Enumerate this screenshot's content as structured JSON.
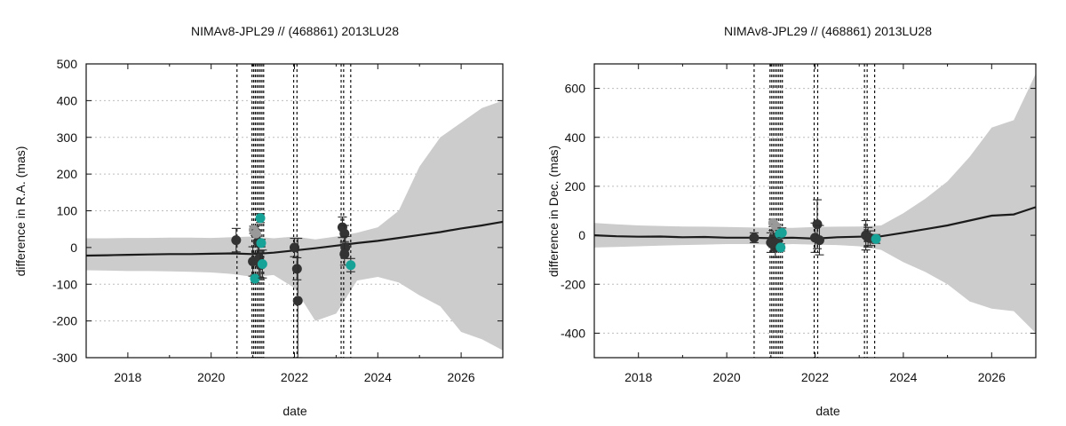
{
  "chart_data": [
    {
      "type": "scatter",
      "title": "NIMAv8-JPL29 // (468861) 2013LU28",
      "xlabel": "date",
      "ylabel": "difference in R.A. (mas)",
      "xlim": [
        2017.0,
        2027.0
      ],
      "ylim": [
        -300,
        500
      ],
      "xticks": [
        2018,
        2020,
        2022,
        2024,
        2026
      ],
      "yticks": [
        -300,
        -200,
        -100,
        0,
        100,
        200,
        300,
        400,
        500
      ],
      "grid": "horizontal dashed",
      "vlines": [
        2020.62,
        2020.98,
        2021.02,
        2021.06,
        2021.1,
        2021.14,
        2021.18,
        2021.22,
        2021.26,
        2021.98,
        2022.06,
        2023.12,
        2023.18,
        2023.35
      ],
      "model_curve": {
        "x": [
          2017.0,
          2017.5,
          2018.0,
          2018.5,
          2019.0,
          2019.5,
          2020.0,
          2020.5,
          2021.0,
          2021.5,
          2022.0,
          2022.5,
          2023.0,
          2023.5,
          2024.0,
          2024.5,
          2025.0,
          2025.5,
          2026.0,
          2026.5,
          2027.0
        ],
        "y": [
          -22,
          -21,
          -20,
          -19,
          -18,
          -18,
          -17,
          -16,
          -18,
          -14,
          -8,
          -2,
          5,
          12,
          18,
          26,
          34,
          42,
          52,
          60,
          70
        ],
        "color": "#1b1b1b"
      },
      "uncertainty_band": {
        "x": [
          2017.0,
          2017.5,
          2018.0,
          2018.5,
          2019.0,
          2019.5,
          2020.0,
          2020.5,
          2021.0,
          2021.5,
          2022.0,
          2022.5,
          2023.0,
          2023.5,
          2024.0,
          2024.5,
          2025.0,
          2025.5,
          2026.0,
          2026.5,
          2027.0
        ],
        "upper": [
          25,
          25,
          26,
          26,
          27,
          27,
          26,
          28,
          30,
          25,
          30,
          22,
          30,
          40,
          55,
          100,
          220,
          300,
          340,
          380,
          400
        ],
        "lower": [
          -62,
          -63,
          -64,
          -64,
          -65,
          -66,
          -68,
          -72,
          -80,
          -75,
          -110,
          -200,
          -180,
          -90,
          -80,
          -95,
          -130,
          -160,
          -230,
          -250,
          -280
        ],
        "color": "#cccccc"
      },
      "series": [
        {
          "color": "#333333",
          "points": [
            {
              "x": 2020.6,
              "y": 20,
              "err": 32
            },
            {
              "x": 2021.0,
              "y": -38,
              "err": 40
            },
            {
              "x": 2021.05,
              "y": 45,
              "err": 12
            },
            {
              "x": 2021.12,
              "y": 15,
              "err": 30
            },
            {
              "x": 2021.15,
              "y": -30,
              "err": 50
            },
            {
              "x": 2021.18,
              "y": -48,
              "err": 40
            },
            {
              "x": 2022.0,
              "y": 0,
              "err": 25
            },
            {
              "x": 2022.06,
              "y": -58,
              "err": 30
            },
            {
              "x": 2022.08,
              "y": -145,
              "err": 170
            },
            {
              "x": 2023.15,
              "y": 55,
              "err": 28
            },
            {
              "x": 2023.2,
              "y": 38,
              "err": 22
            },
            {
              "x": 2023.22,
              "y": 0,
              "err": 30
            },
            {
              "x": 2023.2,
              "y": -18,
              "err": 30
            }
          ]
        },
        {
          "color": "#999999",
          "points": [
            {
              "x": 2021.02,
              "y": 48,
              "err": 10
            },
            {
              "x": 2021.08,
              "y": 38,
              "err": 10
            }
          ]
        },
        {
          "color": "#17a298",
          "points": [
            {
              "x": 2021.05,
              "y": -85,
              "err": 10
            },
            {
              "x": 2021.18,
              "y": 80,
              "err": 12
            },
            {
              "x": 2021.2,
              "y": 12,
              "err": 10
            },
            {
              "x": 2021.23,
              "y": -45,
              "err": 38
            },
            {
              "x": 2023.35,
              "y": -48,
              "err": 18
            }
          ]
        }
      ]
    },
    {
      "type": "scatter",
      "title": "NIMAv8-JPL29 // (468861) 2013LU28",
      "xlabel": "date",
      "ylabel": "difference in Dec. (mas)",
      "xlim": [
        2017.0,
        2027.0
      ],
      "ylim": [
        -500,
        700
      ],
      "xticks": [
        2018,
        2020,
        2022,
        2024,
        2026
      ],
      "yticks": [
        -400,
        -200,
        0,
        200,
        400,
        600
      ],
      "grid": "horizontal dashed",
      "vlines": [
        2020.62,
        2020.98,
        2021.02,
        2021.06,
        2021.1,
        2021.14,
        2021.18,
        2021.22,
        2021.26,
        2021.98,
        2022.06,
        2023.12,
        2023.18,
        2023.35
      ],
      "model_curve": {
        "x": [
          2017.0,
          2017.5,
          2018.0,
          2018.5,
          2019.0,
          2019.5,
          2020.0,
          2020.5,
          2021.0,
          2021.5,
          2022.0,
          2022.5,
          2023.0,
          2023.5,
          2024.0,
          2024.5,
          2025.0,
          2025.5,
          2026.0,
          2026.5,
          2027.0
        ],
        "y": [
          0,
          -4,
          -6,
          -5,
          -8,
          -7,
          -10,
          -10,
          -12,
          -10,
          -14,
          -8,
          -6,
          -4,
          10,
          25,
          40,
          60,
          80,
          85,
          115
        ],
        "color": "#1b1b1b"
      },
      "uncertainty_band": {
        "x": [
          2017.0,
          2017.5,
          2018.0,
          2018.5,
          2019.0,
          2019.5,
          2020.0,
          2020.5,
          2021.0,
          2021.5,
          2022.0,
          2022.5,
          2023.0,
          2023.5,
          2024.0,
          2024.5,
          2025.0,
          2025.5,
          2026.0,
          2026.5,
          2027.0
        ],
        "upper": [
          50,
          45,
          40,
          38,
          36,
          35,
          34,
          32,
          30,
          30,
          34,
          35,
          36,
          40,
          90,
          150,
          220,
          320,
          440,
          470,
          660
        ],
        "lower": [
          -50,
          -48,
          -45,
          -42,
          -40,
          -38,
          -36,
          -36,
          -38,
          -36,
          -38,
          -40,
          -45,
          -60,
          -110,
          -150,
          -200,
          -270,
          -300,
          -310,
          -400
        ],
        "color": "#cccccc"
      },
      "series": [
        {
          "color": "#333333",
          "points": [
            {
              "x": 2020.62,
              "y": -10,
              "err": 20
            },
            {
              "x": 2021.0,
              "y": -30,
              "err": 40
            },
            {
              "x": 2021.05,
              "y": -15,
              "err": 35
            },
            {
              "x": 2021.1,
              "y": -50,
              "err": 40
            },
            {
              "x": 2021.15,
              "y": -25,
              "err": 30
            },
            {
              "x": 2022.0,
              "y": -10,
              "err": 60
            },
            {
              "x": 2022.05,
              "y": 45,
              "err": 100
            },
            {
              "x": 2022.1,
              "y": -20,
              "err": 60
            },
            {
              "x": 2023.15,
              "y": 0,
              "err": 60
            },
            {
              "x": 2023.2,
              "y": -8,
              "err": 40
            },
            {
              "x": 2023.25,
              "y": -12,
              "err": 30
            }
          ]
        },
        {
          "color": "#999999",
          "points": [
            {
              "x": 2021.05,
              "y": 50,
              "err": 15
            },
            {
              "x": 2021.12,
              "y": 35,
              "err": 10
            }
          ]
        },
        {
          "color": "#17a298",
          "points": [
            {
              "x": 2021.2,
              "y": 5,
              "err": 15
            },
            {
              "x": 2021.22,
              "y": -50,
              "err": 15
            },
            {
              "x": 2021.25,
              "y": 10,
              "err": 20
            },
            {
              "x": 2023.38,
              "y": -15,
              "err": 18
            }
          ]
        }
      ]
    }
  ]
}
